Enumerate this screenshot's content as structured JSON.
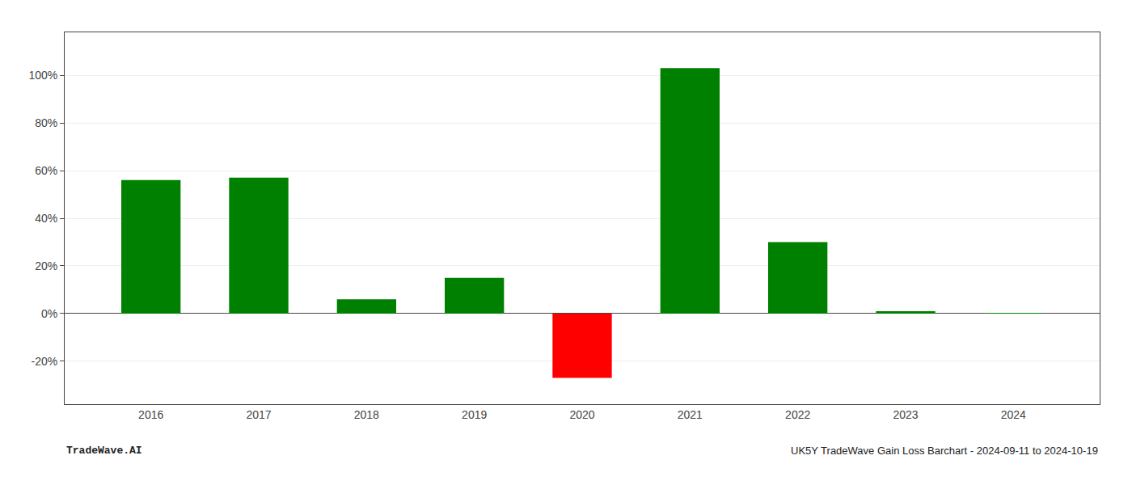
{
  "chart_data": {
    "type": "bar",
    "x": [
      2016,
      2017,
      2018,
      2019,
      2020,
      2021,
      2022,
      2023,
      2024
    ],
    "values": [
      0.56,
      0.57,
      0.06,
      0.15,
      -0.27,
      1.03,
      0.3,
      0.01,
      0.002
    ],
    "colors": [
      "#008000",
      "#008000",
      "#008000",
      "#008000",
      "#ff0000",
      "#008000",
      "#008000",
      "#008000",
      "#008000"
    ],
    "xlim": [
      2015.2,
      2024.8
    ],
    "xticks": [
      2016,
      2017,
      2018,
      2019,
      2020,
      2021,
      2022,
      2023,
      2024
    ],
    "ylim": [
      -0.38,
      1.18
    ],
    "yticks": [
      {
        "value": -0.2,
        "label": "-20%"
      },
      {
        "value": 0.0,
        "label": "0%"
      },
      {
        "value": 0.2,
        "label": "20%"
      },
      {
        "value": 0.4,
        "label": "40%"
      },
      {
        "value": 0.6,
        "label": "60%"
      },
      {
        "value": 0.8,
        "label": "80%"
      },
      {
        "value": 1.0,
        "label": "100%"
      }
    ],
    "grid": true,
    "annotations": [
      "TradeWave.AI",
      "UK5Y TradeWave Gain Loss Barchart - 2024-09-11 to 2024-10-19"
    ]
  }
}
